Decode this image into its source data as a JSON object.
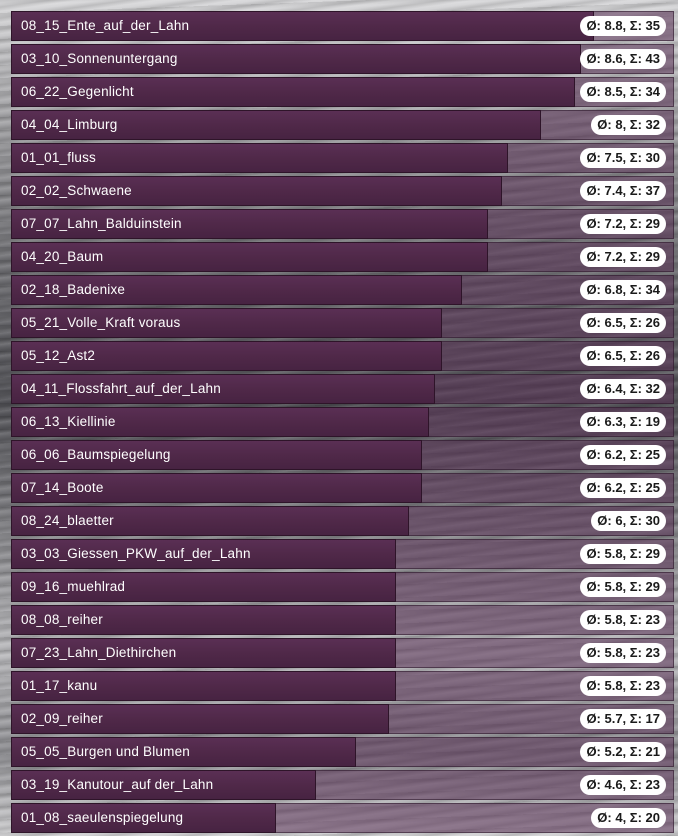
{
  "chart_data": {
    "type": "bar",
    "orientation": "horizontal",
    "xlim": [
      0,
      10
    ],
    "categories": [
      "08_15_Ente_auf_der_Lahn",
      "03_10_Sonnenuntergang",
      "06_22_Gegenlicht",
      "04_04_Limburg",
      "01_01_fluss",
      "02_02_Schwaene",
      "07_07_Lahn_Balduinstein",
      "04_20_Baum",
      "02_18_Badenixe",
      "05_21_Volle_Kraft voraus",
      "05_12_Ast2",
      "04_11_Flossfahrt_auf_der_Lahn",
      "06_13_Kiellinie",
      "06_06_Baumspiegelung",
      "07_14_Boote",
      "08_24_blaetter",
      "03_03_Giessen_PKW_auf_der_Lahn",
      "09_16_muehlrad",
      "08_08_reiher",
      "07_23_Lahn_Diethirchen",
      "01_17_kanu",
      "02_09_reiher",
      "05_05_Burgen und Blumen",
      "03_19_Kanutour_auf der_Lahn",
      "01_08_saeulenspiegelung"
    ],
    "averages": [
      8.8,
      8.6,
      8.5,
      8,
      7.5,
      7.4,
      7.2,
      7.2,
      6.8,
      6.5,
      6.5,
      6.4,
      6.3,
      6.2,
      6.2,
      6,
      5.8,
      5.8,
      5.8,
      5.8,
      5.8,
      5.7,
      5.2,
      4.6,
      4
    ],
    "sums": [
      35,
      43,
      34,
      32,
      30,
      37,
      29,
      29,
      34,
      26,
      26,
      32,
      19,
      25,
      25,
      30,
      29,
      29,
      23,
      23,
      23,
      17,
      21,
      23,
      20
    ],
    "value_labels": [
      "Ø: 8.8, Σ: 35",
      "Ø: 8.6, Σ: 43",
      "Ø: 8.5, Σ: 34",
      "Ø: 8, Σ: 32",
      "Ø: 7.5, Σ: 30",
      "Ø: 7.4, Σ: 37",
      "Ø: 7.2, Σ: 29",
      "Ø: 7.2, Σ: 29",
      "Ø: 6.8, Σ: 34",
      "Ø: 6.5, Σ: 26",
      "Ø: 6.5, Σ: 26",
      "Ø: 6.4, Σ: 32",
      "Ø: 6.3, Σ: 19",
      "Ø: 6.2, Σ: 25",
      "Ø: 6.2, Σ: 25",
      "Ø: 6, Σ: 30",
      "Ø: 5.8, Σ: 29",
      "Ø: 5.8, Σ: 29",
      "Ø: 5.8, Σ: 23",
      "Ø: 5.8, Σ: 23",
      "Ø: 5.8, Σ: 23",
      "Ø: 5.7, Σ: 17",
      "Ø: 5.2, Σ: 21",
      "Ø: 4.6, Σ: 23",
      "Ø: 4, Σ: 20"
    ],
    "colors": {
      "bar": "#4f2848",
      "track": "#5a3255",
      "label_text": "#ffffff",
      "pill_bg": "#ffffff",
      "pill_text": "#1a1a1a"
    }
  }
}
